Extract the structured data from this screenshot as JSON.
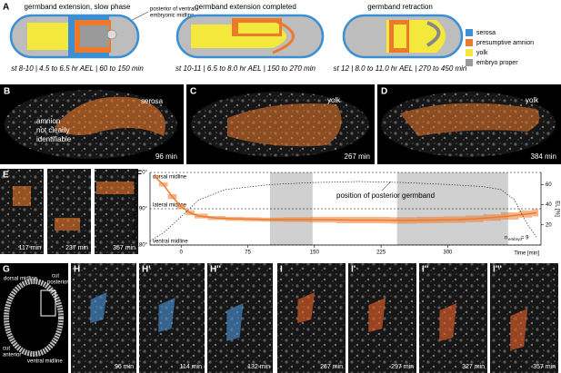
{
  "panel_a": {
    "label": "A",
    "stages": [
      {
        "title": "germband extension, slow phase",
        "caption": "st 8-10 | 4.5 to 6.5 hr AEL | 60 to 150 min"
      },
      {
        "title": "germband extension completed",
        "caption": "st 10-11 | 6.5 to 8.0 hr AEL | 150 to 270 min"
      },
      {
        "title": "germband retraction",
        "caption": "st 12 | 8.0 to 11.0 hr AEL | 270 to 450 min"
      }
    ],
    "annotation": [
      "posterior of ventral",
      "embryonic midline"
    ],
    "legend": [
      {
        "name": "serosa",
        "color": "#3b8fd4"
      },
      {
        "name": "presumptive amnion",
        "color": "#ec7a2c"
      },
      {
        "name": "yolk",
        "color": "#f5e83c"
      },
      {
        "name": "embryo proper",
        "color": "#9a9a9a"
      }
    ]
  },
  "panel_b": {
    "label": "B",
    "serosa": "serosa",
    "amnion": [
      "amnion",
      "not clearly",
      "identifiable"
    ],
    "time": "96 min"
  },
  "panel_c": {
    "label": "C",
    "yolk": "yolk",
    "time": "267 min"
  },
  "panel_d": {
    "label": "D",
    "yolk": "yolk",
    "time": "384 min"
  },
  "panel_e": {
    "label": "E",
    "times": [
      "117 min",
      "237 min",
      "357 min"
    ]
  },
  "panel_f": {
    "label": "F",
    "y_label": "Position of lateral amnion",
    "yticks": [
      {
        "value": 0,
        "label": "0°"
      },
      {
        "value": 90,
        "label": "90°"
      },
      {
        "value": 180,
        "label": "180°"
      }
    ],
    "midlines": [
      "dorsal midline",
      "lateral midline",
      "ventral midline"
    ],
    "xlim": [
      -35,
      405
    ],
    "ylim": [
      0,
      180
    ],
    "y2lim": [
      0,
      72
    ],
    "xticks": [
      0,
      75,
      150,
      225,
      300
    ],
    "x_label": "Time [min]",
    "y2_label": "EL [%]",
    "y2ticks": [
      20,
      40,
      60
    ],
    "annotation": "position of posterior germband",
    "n": {
      "symbol": "n",
      "subscript": "embryo",
      "text": "= 9"
    },
    "shaded": [
      [
        100,
        148
      ],
      [
        243,
        368
      ]
    ],
    "amnion": {
      "color": "#ec7a2c",
      "x": [
        -30,
        -20,
        -10,
        0,
        10,
        20,
        40,
        60,
        80,
        100,
        130,
        160,
        190,
        220,
        250,
        280,
        310,
        330,
        350,
        370,
        390,
        400
      ],
      "values": [
        10,
        30,
        60,
        85,
        100,
        108,
        113,
        115,
        116,
        117,
        117,
        117,
        118,
        118,
        119,
        118,
        117,
        115,
        112,
        108,
        103,
        100
      ],
      "sd": [
        3,
        5,
        6,
        6,
        6,
        6,
        5,
        5,
        5,
        5,
        6,
        7,
        8,
        8,
        8,
        8,
        8,
        8,
        8,
        9,
        9,
        9
      ]
    },
    "germband": {
      "x": [
        -35,
        -20,
        0,
        20,
        50,
        100,
        150,
        200,
        250,
        300,
        340,
        360,
        375,
        390,
        400
      ],
      "values": [
        4,
        12,
        28,
        45,
        55,
        60,
        62,
        63,
        62,
        60,
        58,
        55,
        45,
        20,
        8
      ]
    }
  },
  "panel_g": {
    "label": "G",
    "dorsal": "dorsal midline",
    "cut_posterior": [
      "cut",
      "posterior"
    ],
    "cut_anterior": [
      "cut",
      "anterior"
    ],
    "ventral": "ventral midline"
  },
  "panel_h": [
    {
      "label": "H",
      "time": "96 min"
    },
    {
      "label": "H'",
      "time": "114 min"
    },
    {
      "label": "H''",
      "time": "132 min"
    }
  ],
  "panel_i": [
    {
      "label": "I",
      "time": "267 min"
    },
    {
      "label": "I'",
      "time": "297 min"
    },
    {
      "label": "I''",
      "time": "327 min"
    },
    {
      "label": "I'''",
      "time": "357 min"
    }
  ]
}
